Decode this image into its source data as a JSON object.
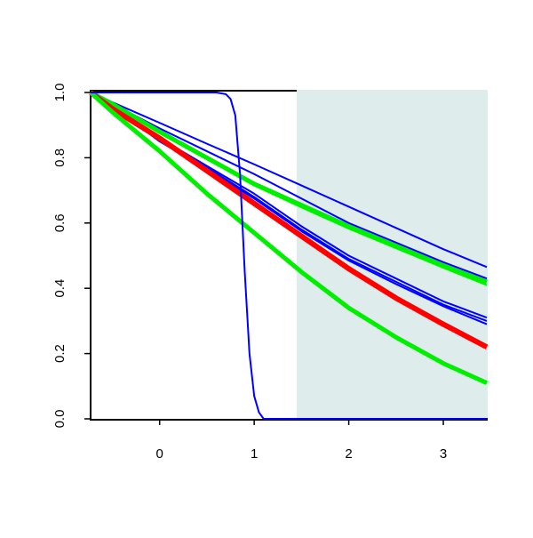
{
  "chart_data": {
    "type": "line",
    "x": [
      -0.73,
      -0.5,
      0,
      0.5,
      1,
      1.5,
      2,
      2.5,
      3,
      3.46
    ],
    "xlim": [
      -0.73,
      3.46
    ],
    "ylim": [
      0,
      1
    ],
    "xticks": [
      0,
      1,
      2,
      3
    ],
    "yticks": [
      {
        "value": 0,
        "label": "0.0"
      },
      0.2,
      0.4,
      0.6,
      0.8,
      {
        "value": 1,
        "label": "1.0"
      }
    ],
    "shade_x": [
      1.45,
      3.46
    ],
    "shade_color": "#deeceb",
    "series": [
      {
        "color": "#0000ff",
        "width": 2,
        "values": [
          1,
          0.97,
          0.907,
          0.843,
          0.78,
          0.715,
          0.65,
          0.585,
          0.52,
          0.465
        ]
      },
      {
        "color": "#0000ff",
        "width": 2,
        "values": [
          1,
          0.965,
          0.89,
          0.82,
          0.75,
          0.675,
          0.6,
          0.54,
          0.48,
          0.43
        ]
      },
      {
        "color": "#0000ff",
        "width": 2,
        "values": [
          1,
          0.96,
          0.86,
          0.775,
          0.69,
          0.59,
          0.5,
          0.43,
          0.36,
          0.31
        ]
      },
      {
        "color": "#0000ff",
        "width": 2,
        "values": [
          1,
          0.96,
          0.855,
          0.77,
          0.68,
          0.58,
          0.49,
          0.42,
          0.35,
          0.3
        ]
      },
      {
        "color": "#0000ff",
        "width": 2,
        "values": [
          1,
          0.958,
          0.85,
          0.765,
          0.675,
          0.575,
          0.485,
          0.413,
          0.345,
          0.29
        ]
      },
      {
        "color": "#00ee00",
        "width": 5,
        "values": [
          1,
          0.965,
          0.88,
          0.8,
          0.72,
          0.655,
          0.59,
          0.53,
          0.47,
          0.42
        ]
      },
      {
        "color": "#00ee00",
        "width": 2,
        "values": [
          1,
          0.963,
          0.875,
          0.795,
          0.715,
          0.648,
          0.583,
          0.523,
          0.463,
          0.41
        ]
      },
      {
        "color": "#ff0000",
        "width": 6,
        "values": [
          1,
          0.95,
          0.86,
          0.76,
          0.66,
          0.56,
          0.46,
          0.37,
          0.29,
          0.22
        ]
      },
      {
        "color": "#00ee00",
        "width": 5,
        "values": [
          1,
          0.94,
          0.82,
          0.69,
          0.57,
          0.45,
          0.34,
          0.25,
          0.17,
          0.11
        ]
      },
      {
        "color": "#0000ff",
        "width": 2,
        "x": [
          -0.73,
          0.6,
          0.7,
          0.75,
          0.8,
          0.85,
          0.9,
          0.95,
          1.0,
          1.05,
          1.1,
          3.46
        ],
        "values": [
          1,
          1,
          0.995,
          0.98,
          0.93,
          0.75,
          0.45,
          0.2,
          0.07,
          0.02,
          0,
          0
        ]
      }
    ]
  }
}
